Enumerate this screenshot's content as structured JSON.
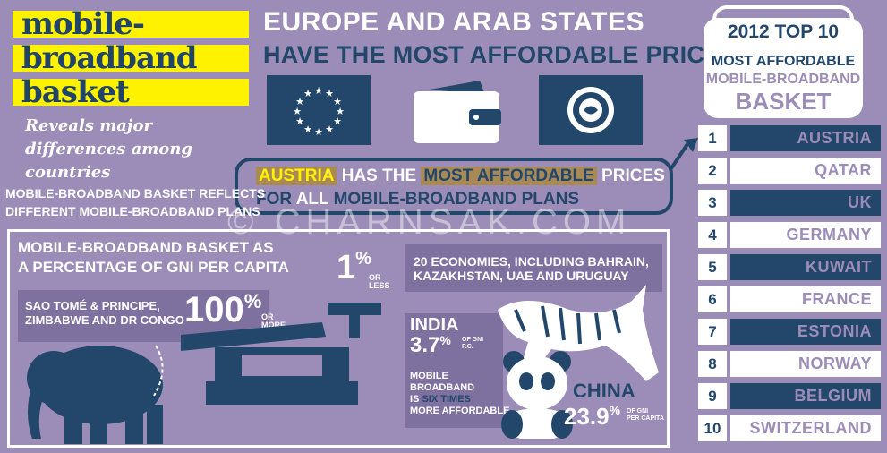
{
  "title": {
    "line1": "mobile-",
    "line2": "broadband",
    "line3": "basket",
    "subtitle": "Reveals major differences among countries"
  },
  "headline": {
    "line1": "EUROPE AND ARAB STATES",
    "line2": "HAVE THE MOST AFFORDABLE PRICES"
  },
  "austria_callout": {
    "country": "AUSTRIA",
    "has_the": "HAS THE",
    "most_affordable": "MOST AFFORDABLE",
    "prices": "PRICES",
    "line2_for": "FOR",
    "line2_all": "ALL",
    "line2_rest": "MOBILE-BROADBAND PLANS"
  },
  "reflects": {
    "line1": "MOBILE-BROADBAND BASKET REFLECTS",
    "line2": "DIFFERENT MOBILE-BROADBAND PLANS"
  },
  "watermark": "© CHARNSAK.COM",
  "gni": {
    "title_line1": "MOBILE-BROADBAND BASKET AS",
    "title_line2": "A PERCENTAGE OF GNI PER CAPITA",
    "high_countries_line1": "SAO TOMÉ & PRINCIPE,",
    "high_countries_line2": "ZIMBABWE AND DR CONGO",
    "high_value": "100",
    "high_pct": "%",
    "high_tag1": "OR",
    "high_tag2": "MORE",
    "low_value": "1",
    "low_pct": "%",
    "low_tag1": "OR",
    "low_tag2": "LESS",
    "low_countries_line1": "20 ECONOMIES, INCLUDING BAHRAIN,",
    "low_countries_line2": "KAZAKHSTAN, UAE AND URUGUAY"
  },
  "india": {
    "name": "INDIA",
    "value": "3.7",
    "pct": "%",
    "tag1": "OF GNI",
    "tag2": "P.C.",
    "note_line1": "MOBILE",
    "note_line2": "BROADBAND",
    "note_is": "IS",
    "note_six": "SIX TIMES",
    "note_line4": "MORE AFFORDABLE"
  },
  "china": {
    "name": "CHINA",
    "value": "23.9",
    "pct": "%",
    "tag1": "OF GNI",
    "tag2": "PER CAPITA"
  },
  "top10": {
    "year_title": "2012 TOP 10",
    "l1": "MOST AFFORDABLE",
    "l2": "MOBILE-BROADBAND",
    "l3": "BASKET",
    "items": [
      {
        "rank": "1",
        "country": "AUSTRIA"
      },
      {
        "rank": "2",
        "country": "QATAR"
      },
      {
        "rank": "3",
        "country": "UK"
      },
      {
        "rank": "4",
        "country": "GERMANY"
      },
      {
        "rank": "5",
        "country": "KUWAIT"
      },
      {
        "rank": "6",
        "country": "FRANCE"
      },
      {
        "rank": "7",
        "country": "ESTONIA"
      },
      {
        "rank": "8",
        "country": "NORWAY"
      },
      {
        "rank": "9",
        "country": "BELGIUM"
      },
      {
        "rank": "10",
        "country": "SWITZERLAND"
      }
    ]
  },
  "colors": {
    "background": "#9b8db7",
    "navy": "#22476b",
    "yellow": "#fff200",
    "highlight": "#a98a56"
  },
  "icons": [
    "eu-flag-icon",
    "wallet-icon",
    "arab-league-emblem-icon",
    "elephant-icon",
    "scale-icon",
    "tiger-icon",
    "panda-icon"
  ]
}
